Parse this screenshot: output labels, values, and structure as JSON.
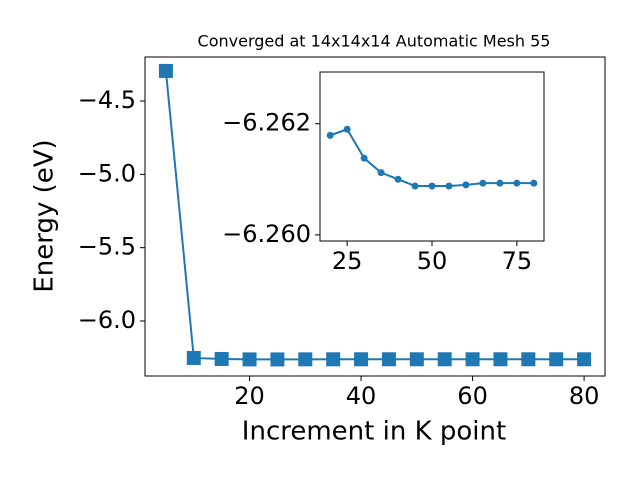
{
  "chart_data": [
    {
      "type": "line",
      "title": "Converged at 14x14x14 Automatic Mesh 55",
      "x_label": "Increment in K point",
      "y_label": "Energy (eV)",
      "series": [
        {
          "color": "#1f77b4",
          "x": [
            5,
            10,
            15,
            20,
            25,
            30,
            35,
            40,
            45,
            50,
            55,
            60,
            65,
            70,
            75,
            80
          ],
          "values": [
            -4.295,
            -6.252,
            -6.259,
            -6.2618,
            -6.2619,
            -6.2614,
            -6.2611,
            -6.261,
            -6.2609,
            -6.2609,
            -6.2609,
            -6.2609,
            -6.2609,
            -6.2609,
            -6.2609,
            -6.2609
          ]
        }
      ],
      "xlim": [
        1.25,
        83.75
      ],
      "xticks": [
        20,
        40,
        60,
        80
      ],
      "ylim": [
        -6.375,
        -4.2
      ],
      "yticks": [
        {
          "value": -6.0,
          "label": "−6.0"
        },
        {
          "value": -5.5,
          "label": "−5.5"
        },
        {
          "value": -5.0,
          "label": "−5.0"
        },
        {
          "value": -4.5,
          "label": "−4.5"
        }
      ]
    },
    {
      "type": "line",
      "series": [
        {
          "color": "#1f77b4",
          "x": [
            20,
            25,
            30,
            35,
            40,
            45,
            50,
            55,
            60,
            65,
            70,
            75,
            80
          ],
          "values": [
            -6.26179,
            -6.2619,
            -6.26138,
            -6.26112,
            -6.261,
            -6.26088,
            -6.26088,
            -6.26088,
            -6.2609,
            -6.26093,
            -6.26093,
            -6.26093,
            -6.26093
          ]
        }
      ],
      "xlim": [
        17,
        83
      ],
      "xticks": [
        25,
        50,
        75
      ],
      "ylim": [
        -6.25989,
        -6.26293
      ],
      "yticks": [
        {
          "value": -6.262,
          "label": "−6.262"
        },
        {
          "value": -6.26,
          "label": "−6.260"
        }
      ]
    }
  ]
}
